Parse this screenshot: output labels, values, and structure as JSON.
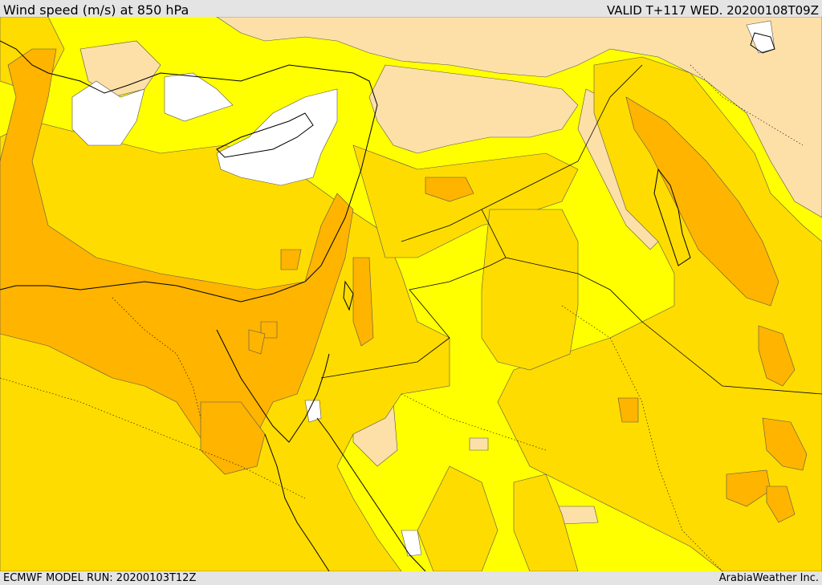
{
  "header": {
    "title": "Wind speed (m/s) at 850 hPa",
    "valid": "VALID T+117 WED. 20200108T09Z"
  },
  "footer": {
    "model_run": "ECMWF MODEL RUN: 20200103T12Z",
    "brand": "ArabiaWeather Inc."
  },
  "map": {
    "field": "wind-speed",
    "colors": {
      "calm": "#ffffff",
      "light": "#fde0a8",
      "moderate": "#ffff00",
      "fresh": "#ffdc00",
      "strong": "#ffb400",
      "coast": "#000000",
      "contour": "#555555"
    }
  }
}
